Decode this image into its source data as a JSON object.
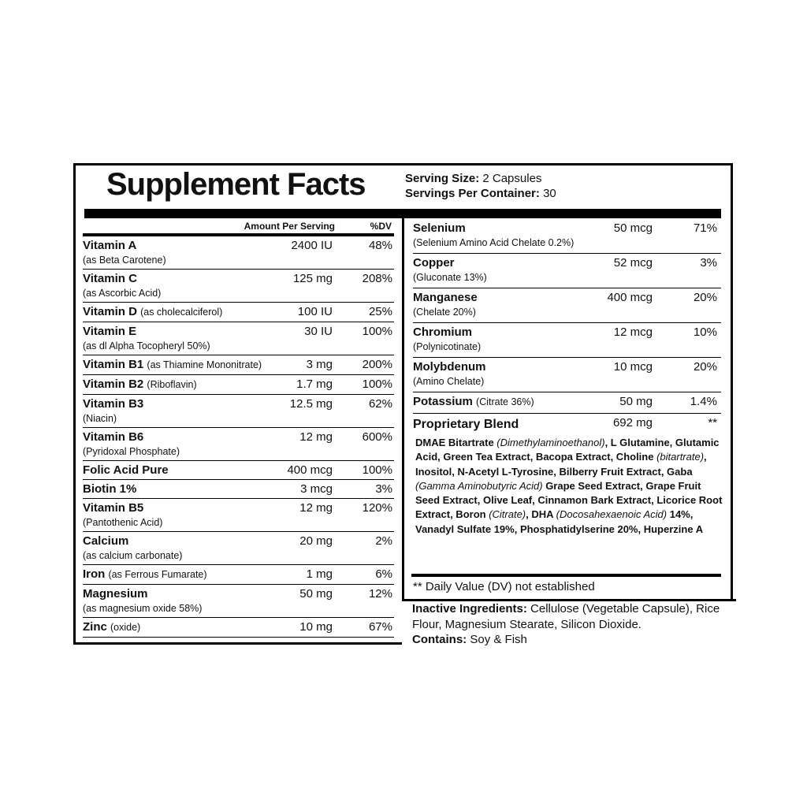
{
  "title": "Supplement Facts",
  "serving": [
    {
      "label": "Serving Size:",
      "value": "2 Capsules"
    },
    {
      "label": "Servings Per Container:",
      "value": "30"
    }
  ],
  "left": {
    "header": {
      "amount": "Amount Per Serving",
      "dv": "%DV"
    },
    "rows": [
      {
        "name": "Vitamin A",
        "note": "(as Beta Carotene)",
        "amount": "2400 IU",
        "dv": "48%"
      },
      {
        "name": "Vitamin C",
        "note": "(as Ascorbic Acid)",
        "amount": "125 mg",
        "dv": "208%"
      },
      {
        "name": "Vitamin D",
        "inline_note": "(as cholecalciferol)",
        "amount": "100 IU",
        "dv": "25%"
      },
      {
        "name": "Vitamin E",
        "note": "(as dl Alpha Tocopheryl 50%)",
        "amount": "30 IU",
        "dv": "100%"
      },
      {
        "name": "Vitamin B1",
        "inline_note": "(as Thiamine Mononitrate)",
        "amount": "3 mg",
        "dv": "200%"
      },
      {
        "name": "Vitamin B2",
        "inline_note": "(Riboflavin)",
        "amount": "1.7 mg",
        "dv": "100%"
      },
      {
        "name": "Vitamin B3",
        "note": "(Niacin)",
        "amount": "12.5 mg",
        "dv": "62%"
      },
      {
        "name": "Vitamin B6",
        "note": "(Pyridoxal Phosphate)",
        "amount": "12 mg",
        "dv": "600%"
      },
      {
        "name": "Folic Acid Pure",
        "amount": "400 mcg",
        "dv": "100%"
      },
      {
        "name": "Biotin 1%",
        "amount": "3 mcg",
        "dv": "3%"
      },
      {
        "name": "Vitamin B5",
        "note": "(Pantothenic Acid)",
        "amount": "12 mg",
        "dv": "120%"
      },
      {
        "name": "Calcium",
        "note": "(as calcium carbonate)",
        "amount": "20 mg",
        "dv": "2%"
      },
      {
        "name": "Iron",
        "inline_note": "(as Ferrous Fumarate)",
        "amount": "1 mg",
        "dv": "6%"
      },
      {
        "name": "Magnesium",
        "note": "(as magnesium oxide 58%)",
        "amount": "50 mg",
        "dv": "12%"
      },
      {
        "name": "Zinc",
        "inline_note": "(oxide)",
        "amount": "10 mg",
        "dv": "67%"
      }
    ]
  },
  "right": {
    "rows": [
      {
        "name": "Selenium",
        "note": "(Selenium Amino Acid Chelate 0.2%)",
        "amount": "50 mcg",
        "dv": "71%"
      },
      {
        "name": "Copper",
        "note": "(Gluconate 13%)",
        "amount": "52 mcg",
        "dv": "3%"
      },
      {
        "name": "Manganese",
        "note": "(Chelate 20%)",
        "amount": "400 mcg",
        "dv": "20%"
      },
      {
        "name": "Chromium",
        "note": "(Polynicotinate)",
        "amount": "12 mcg",
        "dv": "10%"
      },
      {
        "name": "Molybdenum",
        "note": "(Amino Chelate)",
        "amount": "10 mcg",
        "dv": "20%"
      },
      {
        "name": "Potassium",
        "inline_note": "(Citrate 36%)",
        "amount": "50 mg",
        "dv": "1.4%"
      },
      {
        "name": "Proprietary Blend",
        "amount": "692 mg",
        "dv": "**"
      }
    ],
    "blend": [
      {
        "text": "DMAE Bitartrate ",
        "style": "bold"
      },
      {
        "text": "(Dimethylaminoethanol)",
        "style": "italic"
      },
      {
        "text": ", L Glutamine, Glutamic Acid, Green Tea Extract, Bacopa Extract, Choline ",
        "style": "bold"
      },
      {
        "text": "(bitartrate)",
        "style": "italic"
      },
      {
        "text": ", Inositol, N-Acetyl L-Tyrosine, Bilberry Fruit Extract, Gaba ",
        "style": "bold"
      },
      {
        "text": "(Gamma Aminobutyric Acid)",
        "style": "italic"
      },
      {
        "text": " Grape Seed Extract, Grape Fruit Seed Extract, Olive Leaf, Cinnamon Bark Extract, Licorice Root Extract, Boron ",
        "style": "bold"
      },
      {
        "text": "(Citrate)",
        "style": "italic"
      },
      {
        "text": ", DHA ",
        "style": "bold"
      },
      {
        "text": "(Docosahexaenoic Acid)",
        "style": "italic"
      },
      {
        "text": " 14%, Vanadyl Sulfate 19%, Phosphatidylserine 20%, Huperzine A",
        "style": "bold"
      }
    ],
    "footnote": "** Daily Value (DV) not established",
    "inactive": [
      {
        "label": "Inactive Ingredients:",
        "text": "Cellulose (Vegetable Capsule), Rice Flour, Magnesium Stearate, Silicon Dioxide."
      },
      {
        "label": "Contains:",
        "text": "Soy & Fish"
      }
    ]
  }
}
